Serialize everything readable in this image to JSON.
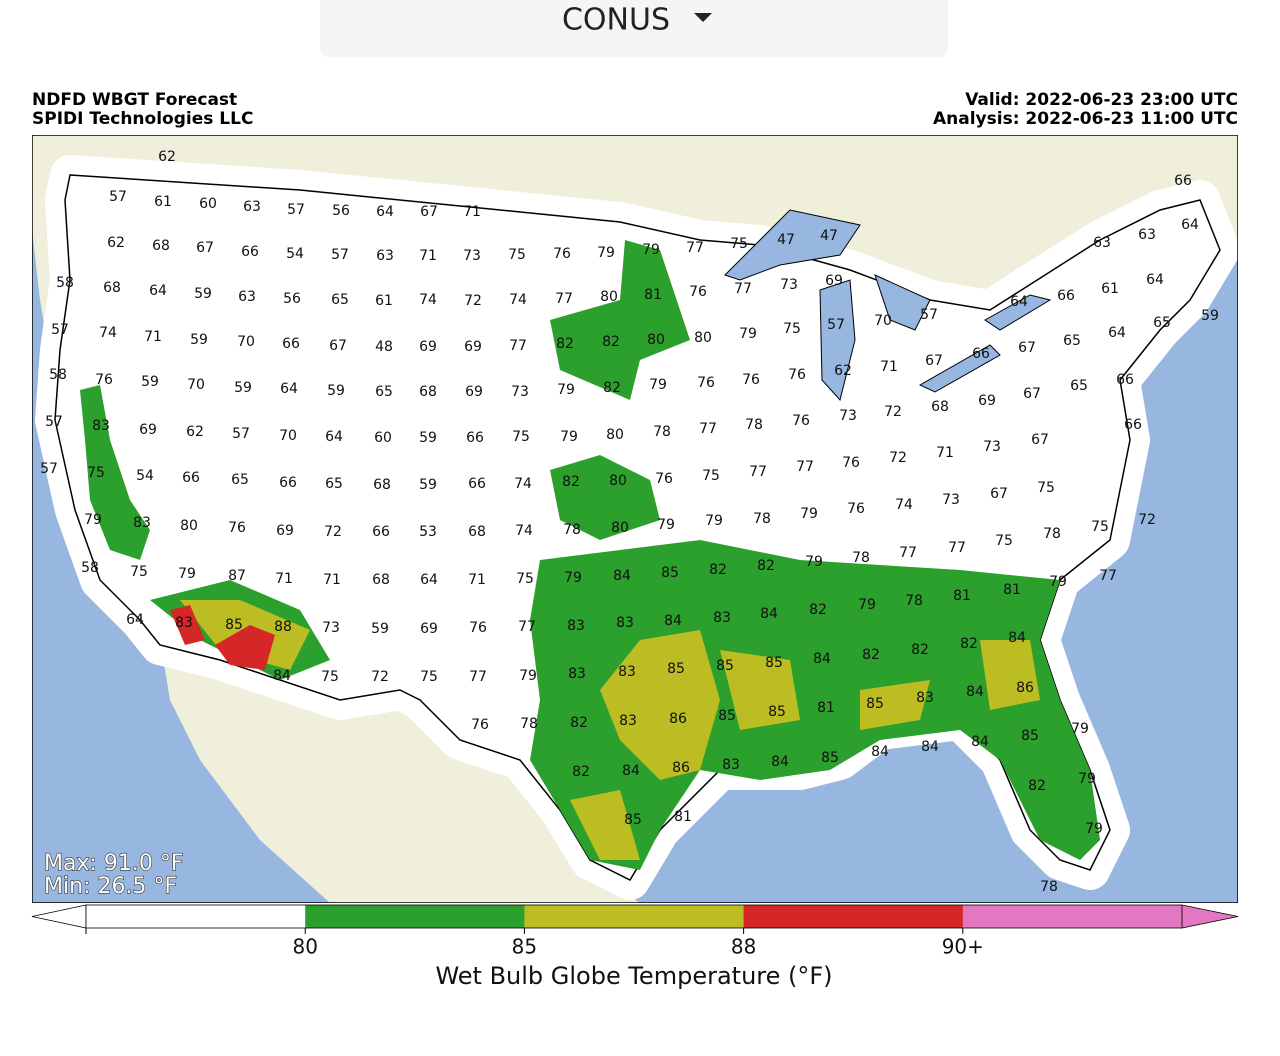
{
  "header": {
    "region": "CONUS"
  },
  "map": {
    "title_left": [
      "NDFD WBGT Forecast",
      "SPIDI Technologies LLC"
    ],
    "title_right": [
      "Valid: 2022-06-23 23:00 UTC",
      "Analysis: 2022-06-23 11:00 UTC"
    ],
    "max_label": "Max: 91.0 °F",
    "min_label": "Min: 26.5 °F",
    "stations": [
      62,
      66,
      57,
      61,
      60,
      63,
      57,
      56,
      64,
      67,
      71,
      62,
      68,
      67,
      66,
      54,
      57,
      63,
      71,
      73,
      75,
      76,
      79,
      79,
      77,
      75,
      47,
      47,
      63,
      63,
      64,
      58,
      68,
      64,
      59,
      63,
      56,
      65,
      61,
      74,
      72,
      74,
      77,
      80,
      81,
      76,
      77,
      73,
      69,
      64,
      66,
      61,
      64,
      57,
      74,
      71,
      59,
      70,
      66,
      67,
      48,
      69,
      69,
      77,
      82,
      82,
      80,
      80,
      79,
      75,
      57,
      70,
      57,
      64,
      65,
      59,
      58,
      76,
      59,
      70,
      59,
      64,
      59,
      65,
      68,
      69,
      73,
      79,
      82,
      79,
      76,
      76,
      76,
      62,
      71,
      67,
      66,
      67,
      65,
      66,
      57,
      83,
      69,
      62,
      57,
      70,
      64,
      60,
      59,
      66,
      75,
      79,
      80,
      78,
      77,
      78,
      76,
      73,
      72,
      68,
      69,
      67,
      65,
      66,
      57,
      75,
      54,
      66,
      65,
      66,
      65,
      68,
      59,
      66,
      74,
      82,
      80,
      76,
      75,
      77,
      77,
      76,
      72,
      71,
      73,
      67,
      79,
      83,
      80,
      76,
      69,
      72,
      66,
      53,
      68,
      74,
      78,
      80,
      79,
      79,
      78,
      79,
      76,
      74,
      73,
      67,
      75,
      75,
      72,
      58,
      75,
      79,
      87,
      71,
      71,
      68,
      64,
      71,
      75,
      79,
      84,
      85,
      82,
      82,
      79,
      78,
      77,
      77,
      75,
      78,
      79,
      77,
      64,
      83,
      85,
      88,
      73,
      59,
      69,
      76,
      77,
      83,
      83,
      84,
      83,
      84,
      82,
      79,
      78,
      81,
      81,
      84,
      84,
      75,
      72,
      75,
      77,
      79,
      83,
      83,
      85,
      85,
      85,
      84,
      82,
      82,
      82,
      84,
      86,
      76,
      78,
      82,
      83,
      86,
      85,
      85,
      81,
      85,
      83,
      85,
      79,
      82,
      84,
      86,
      83,
      84,
      85,
      84,
      84,
      84,
      82,
      79,
      85,
      81,
      79,
      78
    ]
  },
  "colorbar": {
    "label": "Wet Bulb Globe Temperature (°F)",
    "colors": [
      "#ffffff",
      "#2ca02c",
      "#bcbd22",
      "#d62728",
      "#e377c2"
    ],
    "ticks": [
      80,
      85,
      88,
      {
        "value": 90,
        "label": "90+"
      }
    ]
  }
}
